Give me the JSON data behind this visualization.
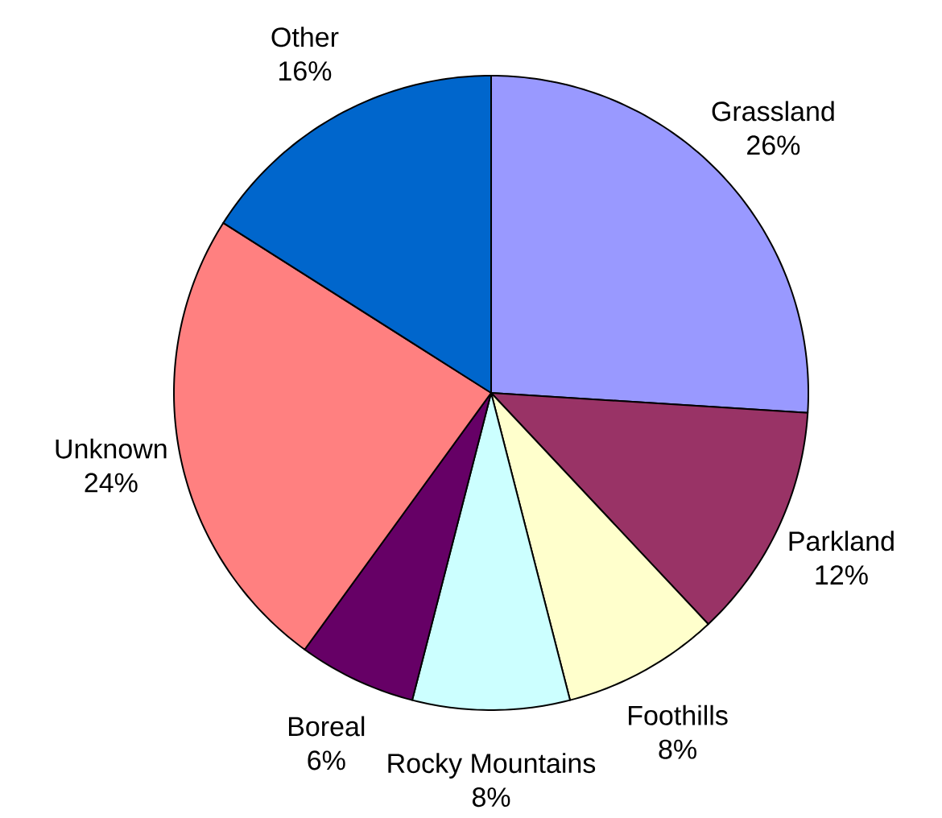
{
  "chart_data": {
    "type": "pie",
    "categories": [
      "Grassland",
      "Parkland",
      "Foothills",
      "Rocky Mountains",
      "Boreal",
      "Unknown",
      "Other"
    ],
    "values": [
      26,
      12,
      8,
      8,
      6,
      24,
      16
    ],
    "value_labels": [
      "26%",
      "12%",
      "8%",
      "8%",
      "6%",
      "24%",
      "16%"
    ],
    "colors": [
      "#9999ff",
      "#993366",
      "#ffffcc",
      "#ccffff",
      "#660066",
      "#ff8080",
      "#0066cc"
    ]
  }
}
